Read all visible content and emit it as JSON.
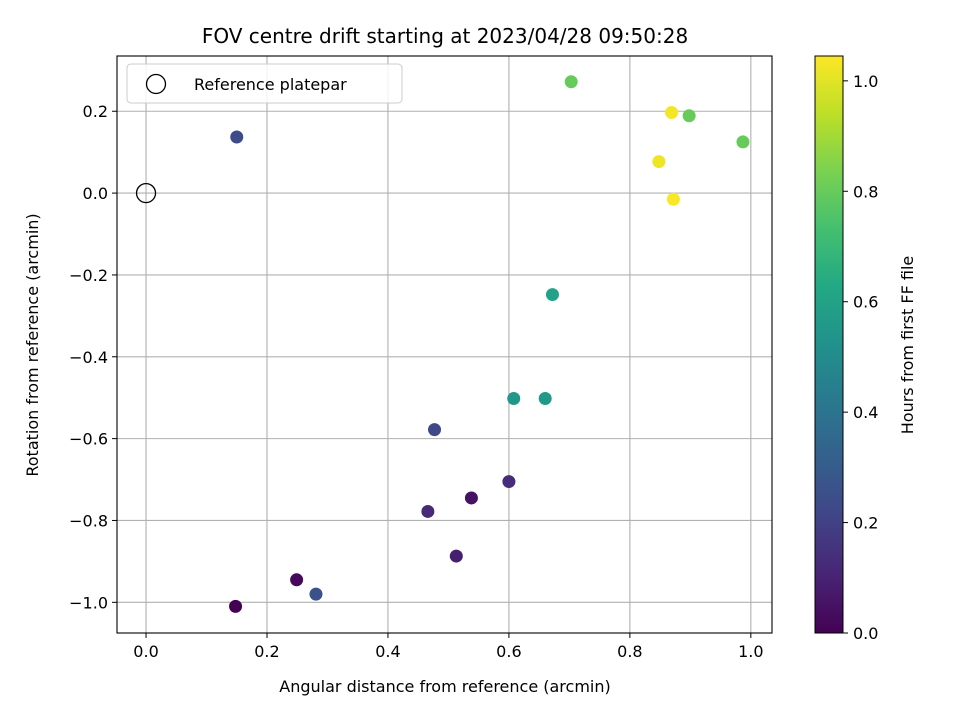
{
  "chart_data": {
    "type": "scatter",
    "title": "FOV centre drift starting at 2023/04/28 09:50:28",
    "xlabel": "Angular distance from reference (arcmin)",
    "ylabel": "Rotation from reference (arcmin)",
    "colorbar_label": "Hours from first FF file",
    "xlim": [
      -0.048,
      1.035
    ],
    "ylim": [
      -1.075,
      0.335
    ],
    "xticks": [
      0.0,
      0.2,
      0.4,
      0.6,
      0.8,
      1.0
    ],
    "xtick_labels": [
      "0.0",
      "0.2",
      "0.4",
      "0.6",
      "0.8",
      "1.0"
    ],
    "yticks": [
      -1.0,
      -0.8,
      -0.6,
      -0.4,
      -0.2,
      0.0,
      0.2
    ],
    "ytick_labels": [
      "−1.0",
      "−0.8",
      "−0.6",
      "−0.4",
      "−0.2",
      "0.0",
      "0.2"
    ],
    "colorbar_range": [
      0.0,
      1.045
    ],
    "colorbar_ticks": [
      0.0,
      0.2,
      0.4,
      0.6,
      0.8,
      1.0
    ],
    "colorbar_tick_labels": [
      "0.0",
      "0.2",
      "0.4",
      "0.6",
      "0.8",
      "1.0"
    ],
    "colormap": "viridis",
    "grid": true,
    "legend_position": "top-left",
    "legend_label": "Reference platepar",
    "reference_point": {
      "x": 0.0,
      "y": 0.0
    },
    "points": [
      {
        "x": 0.148,
        "y": -1.01,
        "hours": 0.0
      },
      {
        "x": 0.249,
        "y": -0.945,
        "hours": 0.02
      },
      {
        "x": 0.538,
        "y": -0.745,
        "hours": 0.05
      },
      {
        "x": 0.513,
        "y": -0.887,
        "hours": 0.09
      },
      {
        "x": 0.466,
        "y": -0.778,
        "hours": 0.12
      },
      {
        "x": 0.6,
        "y": -0.705,
        "hours": 0.13
      },
      {
        "x": 0.477,
        "y": -0.578,
        "hours": 0.23
      },
      {
        "x": 0.15,
        "y": 0.137,
        "hours": 0.24
      },
      {
        "x": 0.281,
        "y": -0.98,
        "hours": 0.26
      },
      {
        "x": 0.608,
        "y": -0.502,
        "hours": 0.55
      },
      {
        "x": 0.66,
        "y": -0.502,
        "hours": 0.56
      },
      {
        "x": 0.672,
        "y": -0.248,
        "hours": 0.6
      },
      {
        "x": 0.703,
        "y": 0.272,
        "hours": 0.8
      },
      {
        "x": 0.898,
        "y": 0.189,
        "hours": 0.8
      },
      {
        "x": 0.987,
        "y": 0.125,
        "hours": 0.8
      },
      {
        "x": 0.848,
        "y": 0.077,
        "hours": 1.02
      },
      {
        "x": 0.869,
        "y": 0.197,
        "hours": 1.03
      },
      {
        "x": 0.872,
        "y": -0.015,
        "hours": 1.04
      }
    ]
  }
}
